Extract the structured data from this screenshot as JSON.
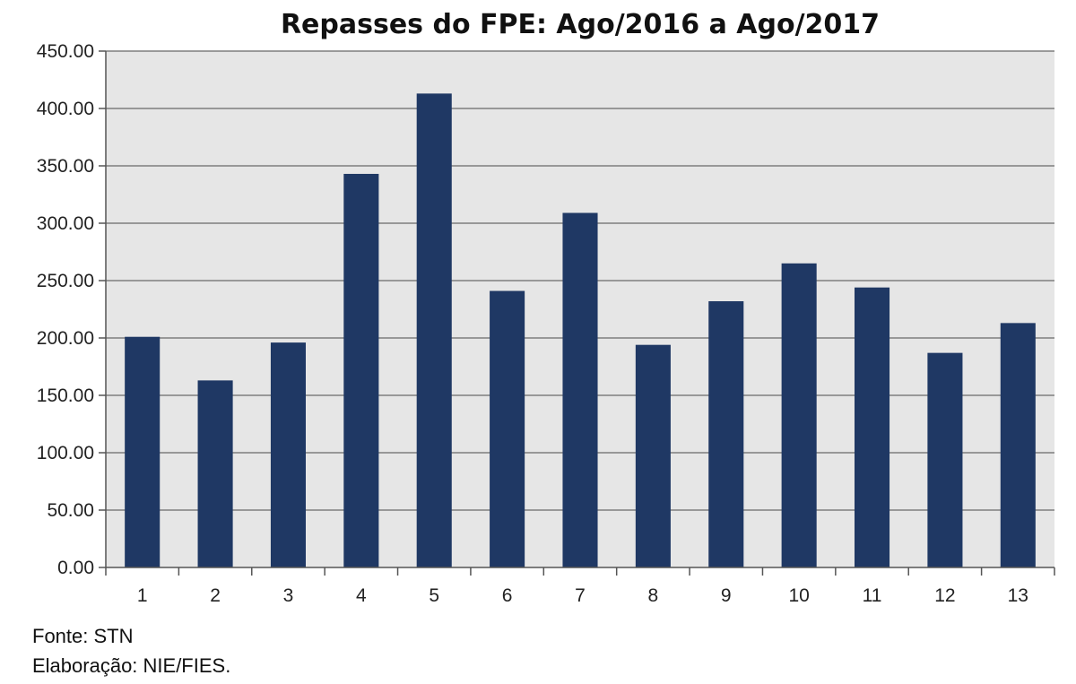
{
  "chart_data": {
    "type": "bar",
    "title": "Repasses do FPE: Ago/2016 a Ago/2017",
    "xlabel": "",
    "ylabel": "",
    "categories": [
      "1",
      "2",
      "3",
      "4",
      "5",
      "6",
      "7",
      "8",
      "9",
      "10",
      "11",
      "12",
      "13"
    ],
    "values": [
      201,
      163,
      196,
      343,
      413,
      241,
      309,
      194,
      232,
      265,
      244,
      187,
      213
    ],
    "ylim": [
      0,
      450
    ],
    "yticks": [
      "0.00",
      "50.00",
      "100.00",
      "150.00",
      "200.00",
      "250.00",
      "300.00",
      "350.00",
      "400.00",
      "450.00"
    ],
    "grid": true,
    "legend": "none",
    "colors": {
      "bar": "#1f3864",
      "plot_bg": "#e6e6e6",
      "grid": "#7f7f7f"
    }
  },
  "footer": {
    "source": "Fonte: STN",
    "elaboration": "Elaboração: NIE/FIES."
  }
}
